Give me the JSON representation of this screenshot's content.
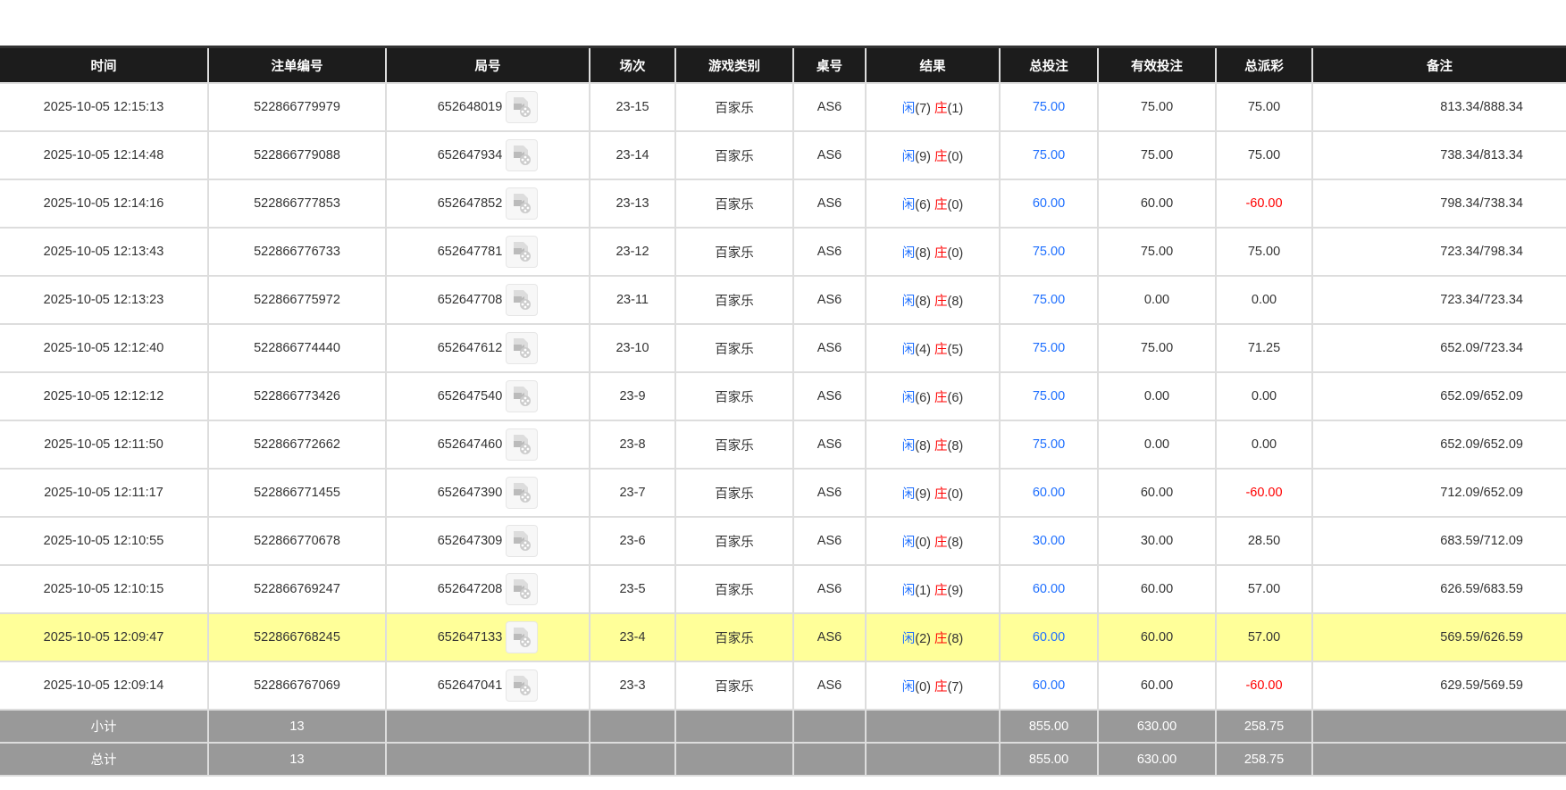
{
  "headers": [
    "时间",
    "注单编号",
    "局号",
    "场次",
    "游戏类别",
    "桌号",
    "结果",
    "总投注",
    "有效投注",
    "总派彩",
    "备注"
  ],
  "result_labels": {
    "player": "闲",
    "banker": "庄"
  },
  "colors": {
    "header_bg": "#1c1c1c",
    "highlight": "#ffff99",
    "summary_bg": "#999999",
    "blue": "#1e6fff",
    "red": "#ff0000"
  },
  "rows": [
    {
      "time": "2025-10-05 12:15:13",
      "bet_id": "522866779979",
      "round": "652648019",
      "shoe": "23-15",
      "game": "百家乐",
      "table": "AS6",
      "player": "(7)",
      "banker": "(1)",
      "bet": "75.00",
      "valid": "75.00",
      "payout": "75.00",
      "payout_negative": false,
      "note": "813.34/888.34"
    },
    {
      "time": "2025-10-05 12:14:48",
      "bet_id": "522866779088",
      "round": "652647934",
      "shoe": "23-14",
      "game": "百家乐",
      "table": "AS6",
      "player": "(9)",
      "banker": "(0)",
      "bet": "75.00",
      "valid": "75.00",
      "payout": "75.00",
      "payout_negative": false,
      "note": "738.34/813.34"
    },
    {
      "time": "2025-10-05 12:14:16",
      "bet_id": "522866777853",
      "round": "652647852",
      "shoe": "23-13",
      "game": "百家乐",
      "table": "AS6",
      "player": "(6)",
      "banker": "(0)",
      "bet": "60.00",
      "valid": "60.00",
      "payout": "-60.00",
      "payout_negative": true,
      "note": "798.34/738.34"
    },
    {
      "time": "2025-10-05 12:13:43",
      "bet_id": "522866776733",
      "round": "652647781",
      "shoe": "23-12",
      "game": "百家乐",
      "table": "AS6",
      "player": "(8)",
      "banker": "(0)",
      "bet": "75.00",
      "valid": "75.00",
      "payout": "75.00",
      "payout_negative": false,
      "note": "723.34/798.34"
    },
    {
      "time": "2025-10-05 12:13:23",
      "bet_id": "522866775972",
      "round": "652647708",
      "shoe": "23-11",
      "game": "百家乐",
      "table": "AS6",
      "player": "(8)",
      "banker": "(8)",
      "bet": "75.00",
      "valid": "0.00",
      "payout": "0.00",
      "payout_negative": false,
      "note": "723.34/723.34"
    },
    {
      "time": "2025-10-05 12:12:40",
      "bet_id": "522866774440",
      "round": "652647612",
      "shoe": "23-10",
      "game": "百家乐",
      "table": "AS6",
      "player": "(4)",
      "banker": "(5)",
      "bet": "75.00",
      "valid": "75.00",
      "payout": "71.25",
      "payout_negative": false,
      "note": "652.09/723.34"
    },
    {
      "time": "2025-10-05 12:12:12",
      "bet_id": "522866773426",
      "round": "652647540",
      "shoe": "23-9",
      "game": "百家乐",
      "table": "AS6",
      "player": "(6)",
      "banker": "(6)",
      "bet": "75.00",
      "valid": "0.00",
      "payout": "0.00",
      "payout_negative": false,
      "note": "652.09/652.09"
    },
    {
      "time": "2025-10-05 12:11:50",
      "bet_id": "522866772662",
      "round": "652647460",
      "shoe": "23-8",
      "game": "百家乐",
      "table": "AS6",
      "player": "(8)",
      "banker": "(8)",
      "bet": "75.00",
      "valid": "0.00",
      "payout": "0.00",
      "payout_negative": false,
      "note": "652.09/652.09"
    },
    {
      "time": "2025-10-05 12:11:17",
      "bet_id": "522866771455",
      "round": "652647390",
      "shoe": "23-7",
      "game": "百家乐",
      "table": "AS6",
      "player": "(9)",
      "banker": "(0)",
      "bet": "60.00",
      "valid": "60.00",
      "payout": "-60.00",
      "payout_negative": true,
      "note": "712.09/652.09"
    },
    {
      "time": "2025-10-05 12:10:55",
      "bet_id": "522866770678",
      "round": "652647309",
      "shoe": "23-6",
      "game": "百家乐",
      "table": "AS6",
      "player": "(0)",
      "banker": "(8)",
      "bet": "30.00",
      "valid": "30.00",
      "payout": "28.50",
      "payout_negative": false,
      "note": "683.59/712.09"
    },
    {
      "time": "2025-10-05 12:10:15",
      "bet_id": "522866769247",
      "round": "652647208",
      "shoe": "23-5",
      "game": "百家乐",
      "table": "AS6",
      "player": "(1)",
      "banker": "(9)",
      "bet": "60.00",
      "valid": "60.00",
      "payout": "57.00",
      "payout_negative": false,
      "note": "626.59/683.59"
    },
    {
      "time": "2025-10-05 12:09:47",
      "bet_id": "522866768245",
      "round": "652647133",
      "shoe": "23-4",
      "game": "百家乐",
      "table": "AS6",
      "player": "(2)",
      "banker": "(8)",
      "bet": "60.00",
      "valid": "60.00",
      "payout": "57.00",
      "payout_negative": false,
      "note": "569.59/626.59",
      "highlighted": true
    },
    {
      "time": "2025-10-05 12:09:14",
      "bet_id": "522866767069",
      "round": "652647041",
      "shoe": "23-3",
      "game": "百家乐",
      "table": "AS6",
      "player": "(0)",
      "banker": "(7)",
      "bet": "60.00",
      "valid": "60.00",
      "payout": "-60.00",
      "payout_negative": true,
      "note": "629.59/569.59"
    }
  ],
  "summary": [
    {
      "label": "小计",
      "count": "13",
      "bet": "855.00",
      "valid": "630.00",
      "payout": "258.75"
    },
    {
      "label": "总计",
      "count": "13",
      "bet": "855.00",
      "valid": "630.00",
      "payout": "258.75"
    }
  ]
}
